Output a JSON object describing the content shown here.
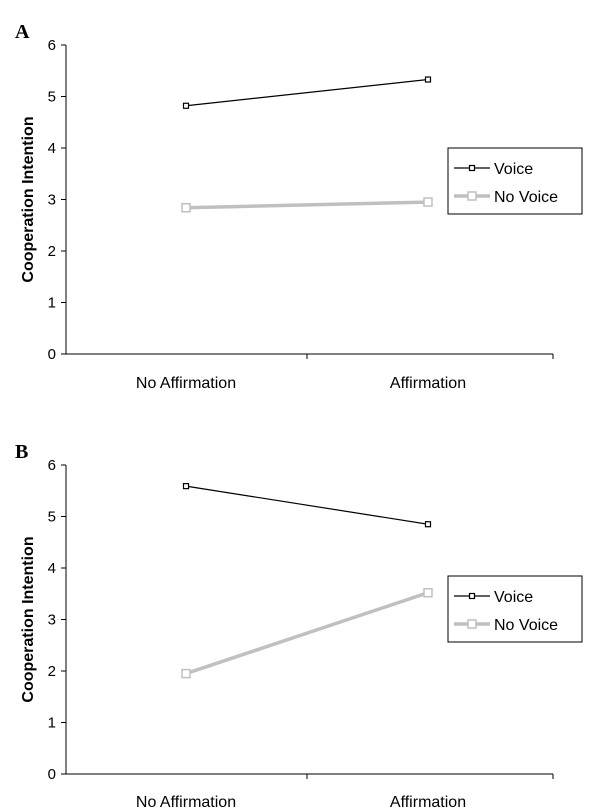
{
  "chart_data": [
    {
      "type": "line",
      "panel": "A",
      "ylabel": "Cooperation Intention",
      "xlabel": "",
      "categories": [
        "No Affirmation",
        "Affirmation"
      ],
      "ylim": [
        0,
        6
      ],
      "yticks": [
        "0",
        "1",
        "2",
        "3",
        "4",
        "5",
        "6"
      ],
      "grid": false,
      "legend_position": "right",
      "series": [
        {
          "name": "Voice",
          "values": [
            4.82,
            5.33
          ],
          "color": "#000000",
          "marker": "open-square"
        },
        {
          "name": "No Voice",
          "values": [
            2.84,
            2.95
          ],
          "color": "#c0c0c0",
          "marker": "open-square"
        }
      ]
    },
    {
      "type": "line",
      "panel": "B",
      "ylabel": "Cooperation Intention",
      "xlabel": "",
      "categories": [
        "No Affirmation",
        "Affirmation"
      ],
      "ylim": [
        0,
        6
      ],
      "yticks": [
        "0",
        "1",
        "2",
        "3",
        "4",
        "5",
        "6"
      ],
      "grid": false,
      "legend_position": "right",
      "series": [
        {
          "name": "Voice",
          "values": [
            5.59,
            4.85
          ],
          "color": "#000000",
          "marker": "open-square"
        },
        {
          "name": "No Voice",
          "values": [
            1.95,
            3.52
          ],
          "color": "#c0c0c0",
          "marker": "open-square"
        }
      ]
    }
  ]
}
